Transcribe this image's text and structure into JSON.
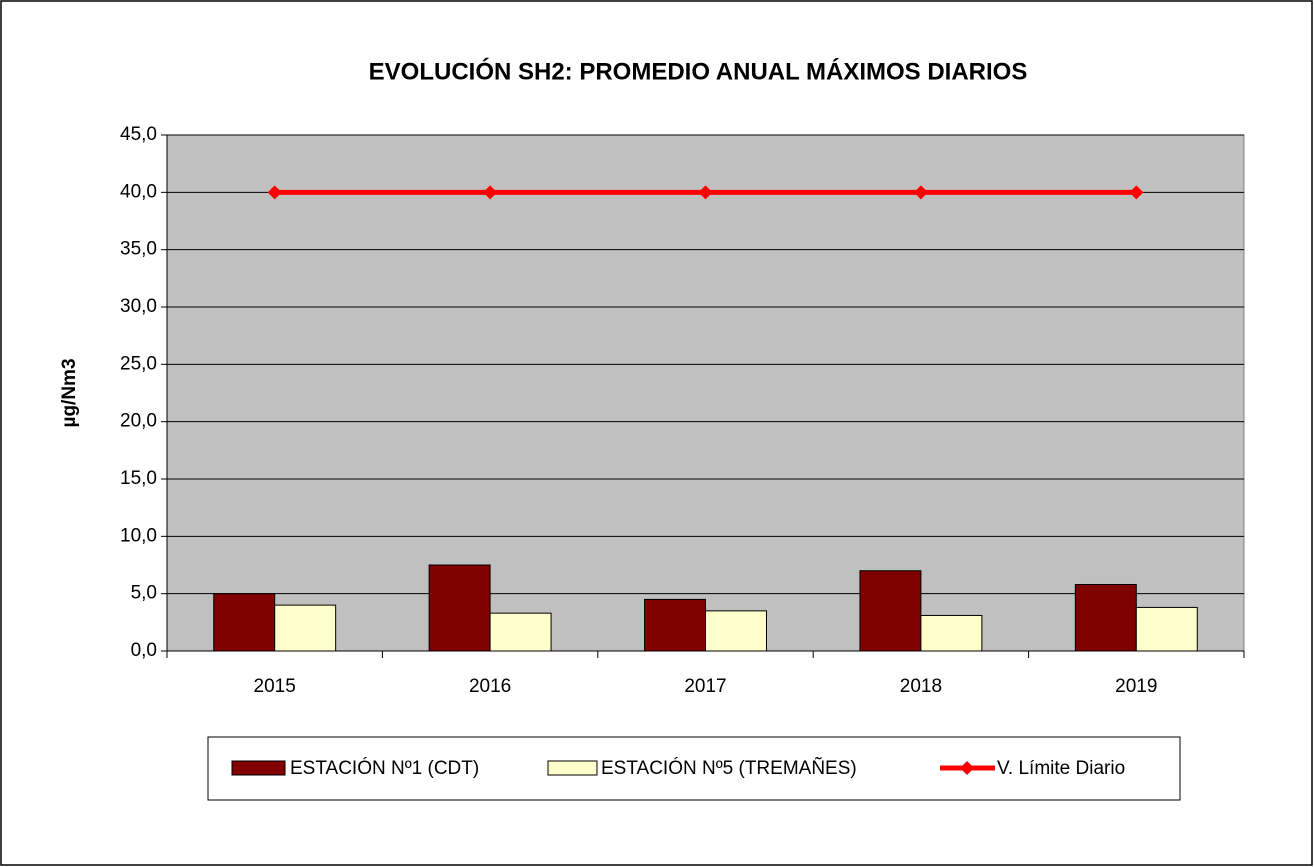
{
  "chart_data": {
    "type": "bar",
    "title": "EVOLUCIÓN SH2: PROMEDIO ANUAL MÁXIMOS DIARIOS",
    "y_label": "µg/Nm3",
    "categories": [
      "2015",
      "2016",
      "2017",
      "2018",
      "2019"
    ],
    "series": [
      {
        "name": "ESTACIÓN Nº1 (CDT)",
        "color": "#800000",
        "values": [
          5.0,
          7.5,
          4.5,
          7.0,
          5.8
        ]
      },
      {
        "name": "ESTACIÓN Nº5 (TREMAÑES)",
        "color": "#ffffcc",
        "values": [
          4.0,
          3.3,
          3.5,
          3.1,
          3.8
        ]
      },
      {
        "name": "V. Límite Diario",
        "color": "#ff0000",
        "type": "line",
        "values": [
          40,
          40,
          40,
          40,
          40
        ]
      }
    ],
    "ylim": [
      0,
      45
    ],
    "yticks": [
      {
        "value": 0,
        "label": "0,0"
      },
      {
        "value": 5,
        "label": "5,0"
      },
      {
        "value": 10,
        "label": "10,0"
      },
      {
        "value": 15,
        "label": "15,0"
      },
      {
        "value": 20,
        "label": "20,0"
      },
      {
        "value": 25,
        "label": "25,0"
      },
      {
        "value": 30,
        "label": "30,0"
      },
      {
        "value": 35,
        "label": "35,0"
      },
      {
        "value": 40,
        "label": "40,0"
      },
      {
        "value": 45,
        "label": "45,0"
      }
    ],
    "grid": true,
    "legend": "bottom",
    "plot_background": "#c0c0c0"
  }
}
